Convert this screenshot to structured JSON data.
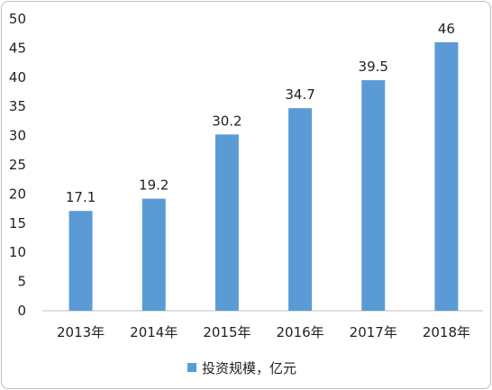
{
  "chart_data": {
    "type": "bar",
    "categories": [
      "2013年",
      "2014年",
      "2015年",
      "2016年",
      "2017年",
      "2018年"
    ],
    "series": [
      {
        "name": "投资规模，亿元",
        "values": [
          17.1,
          19.2,
          30.2,
          34.7,
          39.5,
          46
        ],
        "labels": [
          "17.1",
          "19.2",
          "30.2",
          "34.7",
          "39.5",
          "46"
        ]
      }
    ],
    "ylim": [
      0,
      50
    ],
    "yticks": [
      0,
      5,
      10,
      15,
      20,
      25,
      30,
      35,
      40,
      45,
      50
    ],
    "ytick_labels": [
      "0",
      "5",
      "10",
      "15",
      "20",
      "25",
      "30",
      "35",
      "40",
      "45",
      "50"
    ],
    "grid": false,
    "legend_position": "bottom",
    "colors": {
      "bar": "#5b9bd5",
      "axis": "#bfbfbf",
      "text": "#222222"
    }
  }
}
